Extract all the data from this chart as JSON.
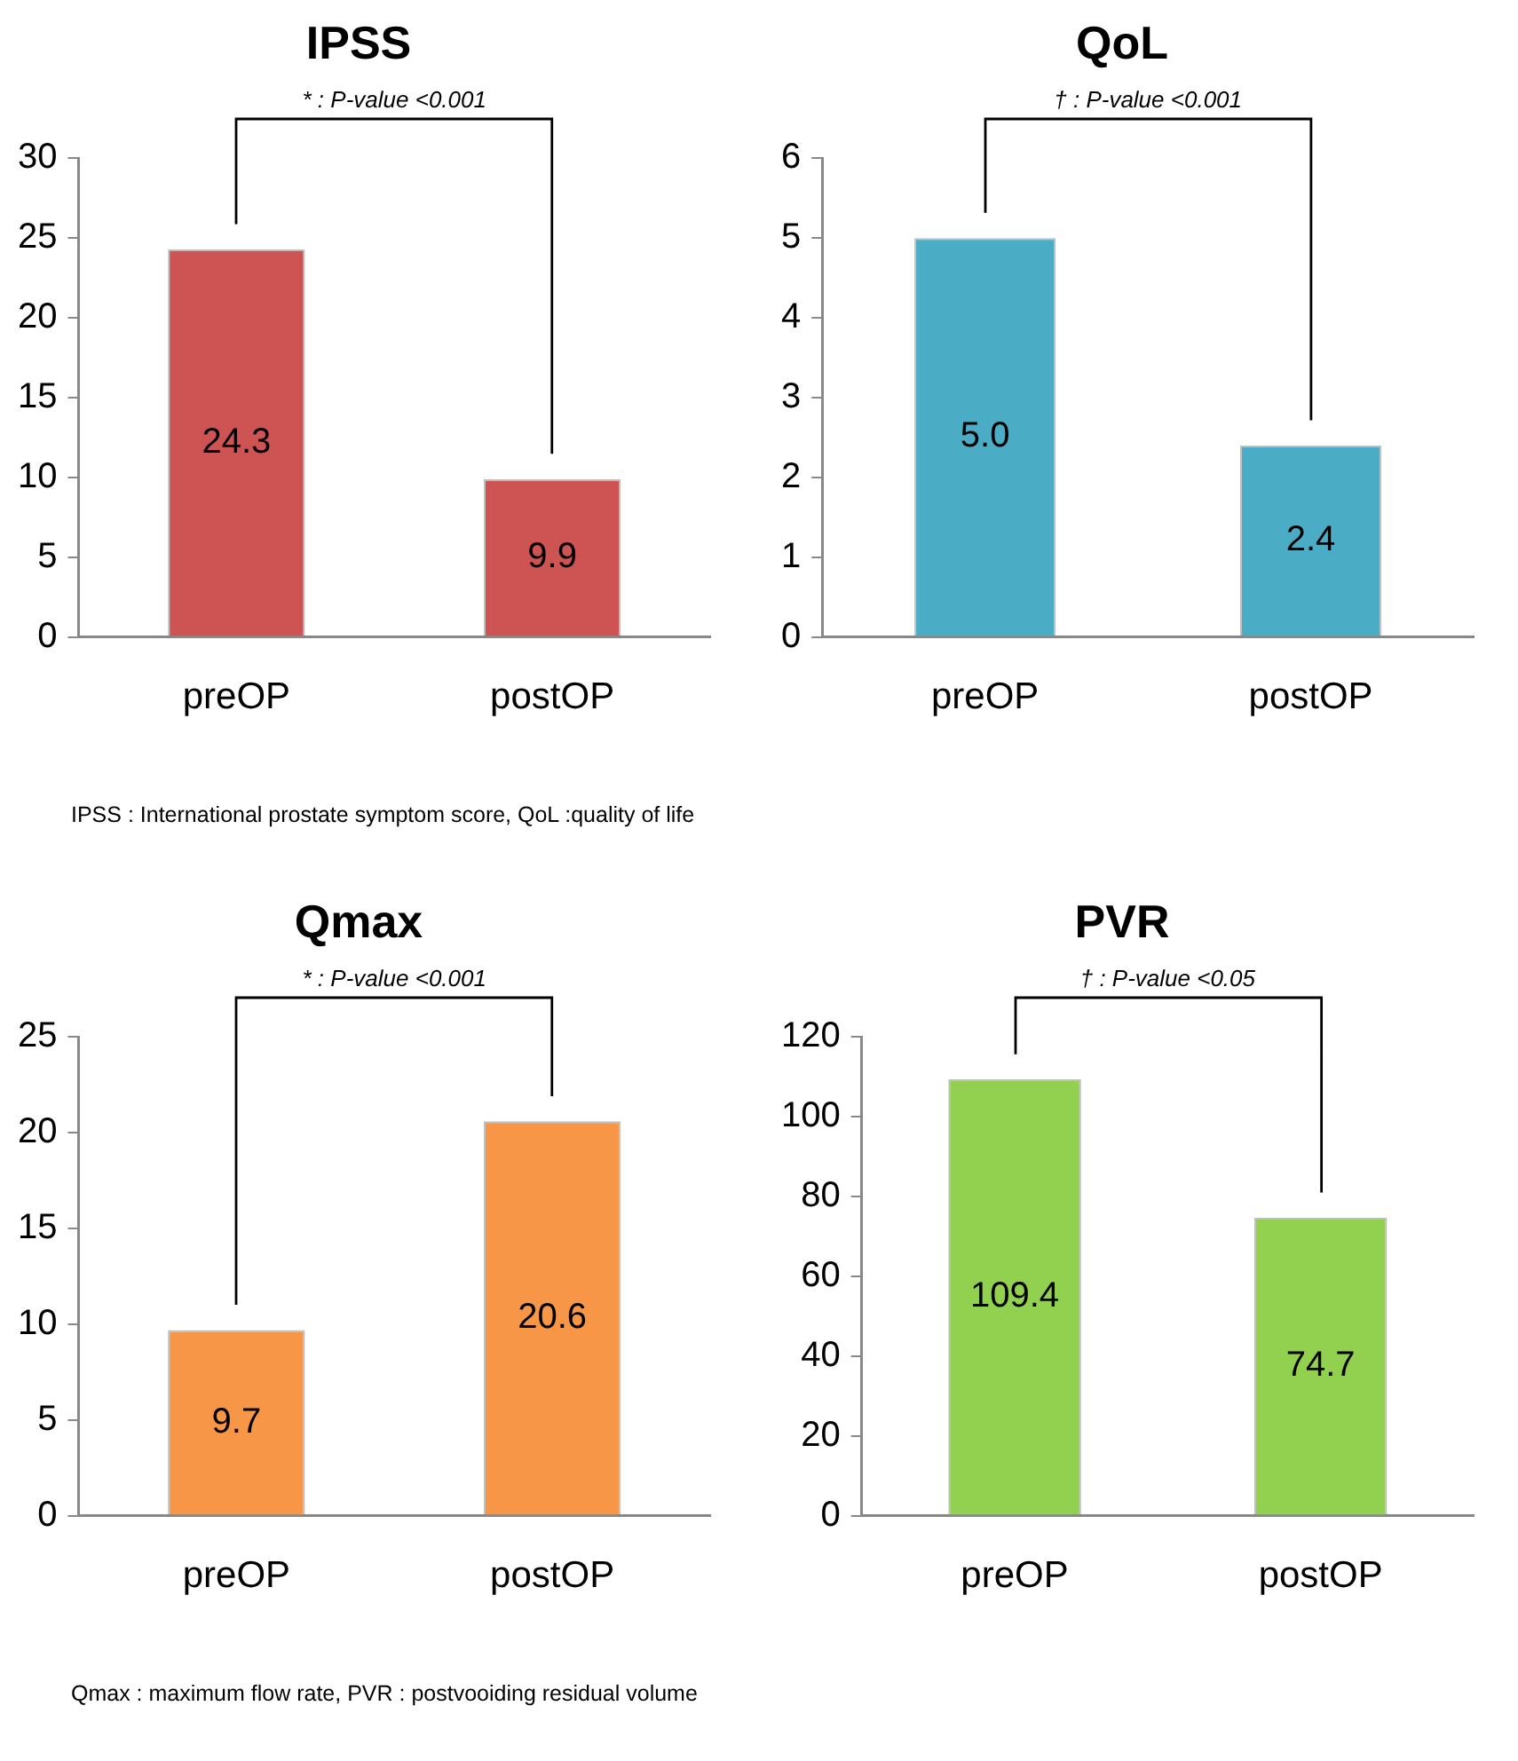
{
  "chart_data": [
    {
      "type": "bar",
      "title": "IPSS",
      "categories": [
        "preOP",
        "postOP"
      ],
      "values": [
        24.3,
        9.9
      ],
      "value_labels": [
        "24.3",
        "9.9"
      ],
      "color": "#cd5452",
      "ylim": [
        0,
        30
      ],
      "yticks": [
        0,
        5,
        10,
        15,
        20,
        25,
        30
      ],
      "grid": false,
      "legend": false,
      "annotations": [
        "* : P-value <0.001",
        "IPSS : International prostate symptom score, QoL :quality of life"
      ]
    },
    {
      "type": "bar",
      "title": "QoL",
      "categories": [
        "preOP",
        "postOP"
      ],
      "values": [
        5.0,
        2.4
      ],
      "value_labels": [
        "5.0",
        "2.4"
      ],
      "color": "#4bacc6",
      "ylim": [
        0,
        6
      ],
      "yticks": [
        0,
        1,
        2,
        3,
        4,
        5,
        6
      ],
      "grid": false,
      "legend": false,
      "annotations": [
        "† : P-value <0.001"
      ]
    },
    {
      "type": "bar",
      "title": "Qmax",
      "categories": [
        "preOP",
        "postOP"
      ],
      "values": [
        9.7,
        20.6
      ],
      "value_labels": [
        "9.7",
        "20.6"
      ],
      "color": "#f79646",
      "ylim": [
        0,
        25
      ],
      "yticks": [
        0,
        5,
        10,
        15,
        20,
        25
      ],
      "grid": false,
      "legend": false,
      "annotations": [
        "* : P-value <0.001",
        "Qmax : maximum flow rate, PVR : postvooiding residual volume"
      ]
    },
    {
      "type": "bar",
      "title": "PVR",
      "categories": [
        "preOP",
        "postOP"
      ],
      "values": [
        109.4,
        74.7
      ],
      "value_labels": [
        "109.4",
        "74.7"
      ],
      "color": "#92d050",
      "ylim": [
        0,
        120
      ],
      "yticks": [
        0,
        20,
        40,
        60,
        80,
        100,
        120
      ],
      "grid": false,
      "legend": false,
      "annotations": [
        "† : P-value <0.05"
      ]
    }
  ]
}
